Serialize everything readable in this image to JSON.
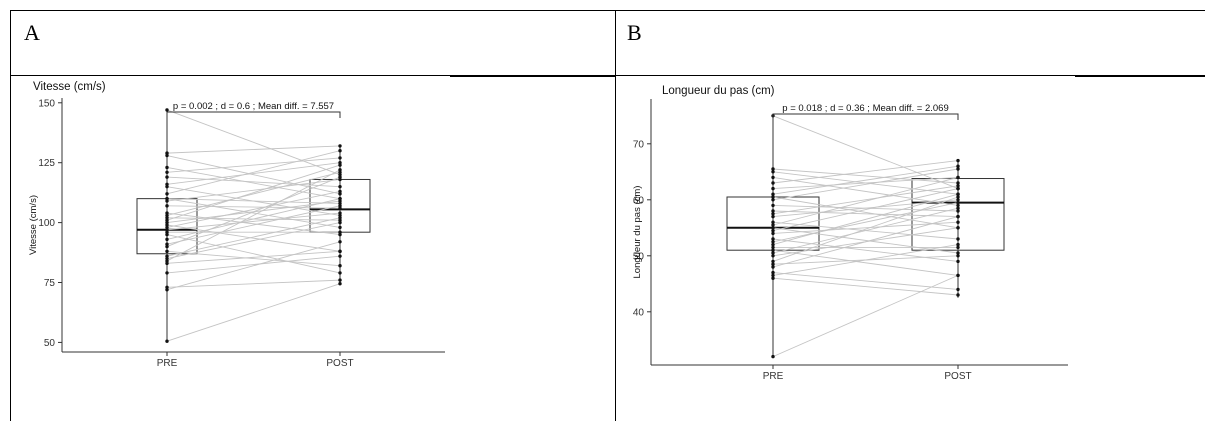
{
  "panels": [
    {
      "letter": "A"
    },
    {
      "letter": "B"
    }
  ],
  "chart_data": [
    {
      "type": "boxplot",
      "title": "Vitesse (cm/s)",
      "ylabel": "Vitesse (cm/s)",
      "xlabel": "",
      "categories": [
        "PRE",
        "POST"
      ],
      "yticks": [
        50,
        75,
        100,
        125,
        150
      ],
      "ylim": [
        46,
        152
      ],
      "annotation": "p =  0.002 ; d =  0.6 ; Mean diff. =  7.557",
      "boxes": [
        {
          "q1": 87,
          "median": 97,
          "q3": 110,
          "min": 50.5,
          "max": 147
        },
        {
          "q1": 96,
          "median": 105.5,
          "q3": 118,
          "min": 74.5,
          "max": 132.5
        }
      ],
      "pairs": [
        [
          147,
          120
        ],
        [
          129,
          132
        ],
        [
          128,
          112
        ],
        [
          123,
          110
        ],
        [
          121,
          127
        ],
        [
          119,
          115
        ],
        [
          116,
          125
        ],
        [
          115,
          103
        ],
        [
          112,
          130
        ],
        [
          110,
          108
        ],
        [
          110,
          98
        ],
        [
          109,
          118
        ],
        [
          107,
          106
        ],
        [
          104,
          95
        ],
        [
          103,
          121
        ],
        [
          102,
          101
        ],
        [
          101,
          124
        ],
        [
          100,
          109
        ],
        [
          99,
          88
        ],
        [
          98,
          113
        ],
        [
          97,
          104
        ],
        [
          96,
          96
        ],
        [
          95,
          79
        ],
        [
          93,
          110
        ],
        [
          91,
          107
        ],
        [
          90,
          119
        ],
        [
          88,
          82
        ],
        [
          86,
          102
        ],
        [
          85,
          100
        ],
        [
          84,
          122
        ],
        [
          83,
          88
        ],
        [
          79,
          86
        ],
        [
          73,
          76
        ],
        [
          72,
          92
        ],
        [
          50.5,
          74.5
        ]
      ],
      "grid": false
    },
    {
      "type": "boxplot",
      "title": "Longueur du pas (cm)",
      "ylabel": "Longueur du pas (cm)",
      "xlabel": "",
      "categories": [
        "PRE",
        "POST"
      ],
      "yticks": [
        40,
        50,
        60,
        70
      ],
      "ylim": [
        30.5,
        78
      ],
      "annotation": "p =  0.018 ; d =  0.36 ; Mean diff. =  2.069",
      "boxes": [
        {
          "q1": 51,
          "median": 55,
          "q3": 60.5,
          "min": 32,
          "max": 75
        },
        {
          "q1": 51,
          "median": 59.5,
          "q3": 63.8,
          "min": 42.5,
          "max": 67.2
        }
      ],
      "pairs": [
        [
          75,
          62
        ],
        [
          65.5,
          63
        ],
        [
          65,
          61
        ],
        [
          64,
          59
        ],
        [
          63,
          67
        ],
        [
          62,
          64
        ],
        [
          61,
          66
        ],
        [
          60.5,
          55
        ],
        [
          60,
          65.5
        ],
        [
          59,
          58
        ],
        [
          58,
          57
        ],
        [
          57.5,
          62.5
        ],
        [
          57,
          60
        ],
        [
          56,
          53
        ],
        [
          55.5,
          64
        ],
        [
          55,
          50.5
        ],
        [
          54.5,
          62
        ],
        [
          54,
          56
        ],
        [
          53,
          49
        ],
        [
          52.5,
          59.5
        ],
        [
          52,
          61
        ],
        [
          51.5,
          51.5
        ],
        [
          51,
          46.5
        ],
        [
          50.5,
          58.5
        ],
        [
          50,
          55
        ],
        [
          49,
          60.5
        ],
        [
          48.5,
          50
        ],
        [
          48,
          57
        ],
        [
          47,
          44
        ],
        [
          46.5,
          52
        ],
        [
          46,
          43
        ],
        [
          32,
          46.5
        ]
      ],
      "grid": false
    }
  ]
}
